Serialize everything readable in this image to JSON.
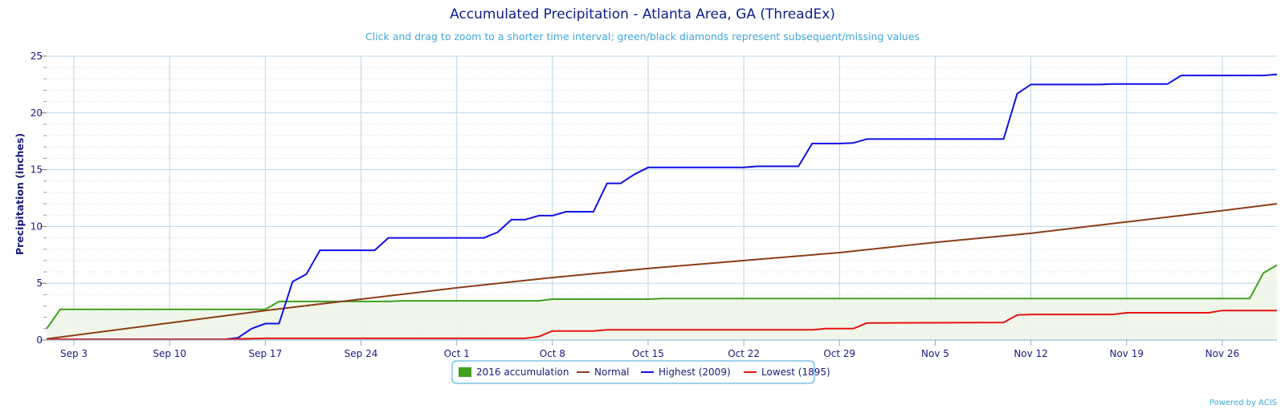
{
  "chart_data": {
    "type": "line",
    "title": "Accumulated Precipitation - Atlanta Area, GA (ThreadEx)",
    "subtitle": "Click and drag to zoom to a shorter time interval; green/black diamonds represent subsequent/missing values",
    "xlabel": "",
    "ylabel": "Precipitation (inches)",
    "x_range": [
      "Sep 1",
      "Nov 30"
    ],
    "ylim": [
      0,
      25
    ],
    "yticks": [
      "0",
      "5",
      "10",
      "15",
      "20",
      "25"
    ],
    "xticks": [
      {
        "label": "Sep 3",
        "day": 2
      },
      {
        "label": "Sep 10",
        "day": 9
      },
      {
        "label": "Sep 17",
        "day": 16
      },
      {
        "label": "Sep 24",
        "day": 23
      },
      {
        "label": "Oct 1",
        "day": 30
      },
      {
        "label": "Oct 8",
        "day": 37
      },
      {
        "label": "Oct 15",
        "day": 44
      },
      {
        "label": "Oct 22",
        "day": 51
      },
      {
        "label": "Oct 29",
        "day": 58
      },
      {
        "label": "Nov 5",
        "day": 65
      },
      {
        "label": "Nov 12",
        "day": 72
      },
      {
        "label": "Nov 19",
        "day": 79
      },
      {
        "label": "Nov 26",
        "day": 86
      }
    ],
    "grid": true,
    "legend_position": "bottom-center",
    "series": [
      {
        "name": "2016 accumulation",
        "style": "area",
        "color": "#3f9f1f",
        "points": [
          [
            0,
            1.0
          ],
          [
            1,
            2.7
          ],
          [
            16,
            2.7
          ],
          [
            17,
            3.4
          ],
          [
            19,
            3.4
          ],
          [
            24,
            3.4
          ],
          [
            25,
            3.4
          ],
          [
            26,
            3.45
          ],
          [
            36,
            3.45
          ],
          [
            37,
            3.6
          ],
          [
            44,
            3.6
          ],
          [
            45,
            3.65
          ],
          [
            88,
            3.65
          ],
          [
            89,
            5.9
          ],
          [
            90,
            6.6
          ]
        ]
      },
      {
        "name": "Normal",
        "style": "line",
        "color": "#8b3d1a",
        "points": [
          [
            0,
            0.1
          ],
          [
            16,
            2.6
          ],
          [
            30,
            4.6
          ],
          [
            37,
            5.5
          ],
          [
            44,
            6.3
          ],
          [
            51,
            7.0
          ],
          [
            58,
            7.7
          ],
          [
            65,
            8.6
          ],
          [
            72,
            9.4
          ],
          [
            79,
            10.4
          ],
          [
            86,
            11.4
          ],
          [
            90,
            12.0
          ]
        ]
      },
      {
        "name": "Highest (2009)",
        "style": "line",
        "color": "#1010e6",
        "points": [
          [
            0,
            0.05
          ],
          [
            13,
            0.05
          ],
          [
            14,
            0.2
          ],
          [
            15,
            1.0
          ],
          [
            16,
            1.45
          ],
          [
            17,
            1.45
          ],
          [
            18,
            5.15
          ],
          [
            19,
            5.8
          ],
          [
            20,
            7.9
          ],
          [
            24,
            7.9
          ],
          [
            25,
            9.0
          ],
          [
            32,
            9.0
          ],
          [
            33,
            9.5
          ],
          [
            34,
            10.6
          ],
          [
            35,
            10.6
          ],
          [
            36,
            10.95
          ],
          [
            37,
            10.95
          ],
          [
            38,
            11.3
          ],
          [
            40,
            11.3
          ],
          [
            41,
            13.8
          ],
          [
            42,
            13.8
          ],
          [
            43,
            14.6
          ],
          [
            44,
            15.2
          ],
          [
            51,
            15.2
          ],
          [
            52,
            15.3
          ],
          [
            55,
            15.3
          ],
          [
            56,
            17.3
          ],
          [
            58,
            17.3
          ],
          [
            59,
            17.35
          ],
          [
            60,
            17.7
          ],
          [
            70,
            17.7
          ],
          [
            71,
            21.7
          ],
          [
            72,
            22.5
          ],
          [
            77,
            22.5
          ],
          [
            78,
            22.55
          ],
          [
            82,
            22.55
          ],
          [
            83,
            23.3
          ],
          [
            89,
            23.3
          ],
          [
            90,
            23.4
          ]
        ]
      },
      {
        "name": "Lowest (1895)",
        "style": "line",
        "color": "#e61414",
        "points": [
          [
            0,
            0.05
          ],
          [
            13,
            0.05
          ],
          [
            14,
            0.1
          ],
          [
            16,
            0.15
          ],
          [
            35,
            0.15
          ],
          [
            36,
            0.3
          ],
          [
            37,
            0.8
          ],
          [
            40,
            0.8
          ],
          [
            41,
            0.9
          ],
          [
            56,
            0.9
          ],
          [
            57,
            1.0
          ],
          [
            59,
            1.0
          ],
          [
            60,
            1.5
          ],
          [
            70,
            1.55
          ],
          [
            71,
            2.2
          ],
          [
            72,
            2.25
          ],
          [
            78,
            2.25
          ],
          [
            79,
            2.4
          ],
          [
            85,
            2.4
          ],
          [
            86,
            2.6
          ],
          [
            90,
            2.6
          ]
        ]
      }
    ],
    "credit": "Powered by ACIS",
    "colors": {
      "title": "#0d1f8a",
      "subtitle": "#3fa6d9",
      "grid": "#b8d6ea",
      "axis": "#7fb3d5",
      "legend_border": "#3fa6d9",
      "area_fill": "#eef6e8"
    }
  }
}
